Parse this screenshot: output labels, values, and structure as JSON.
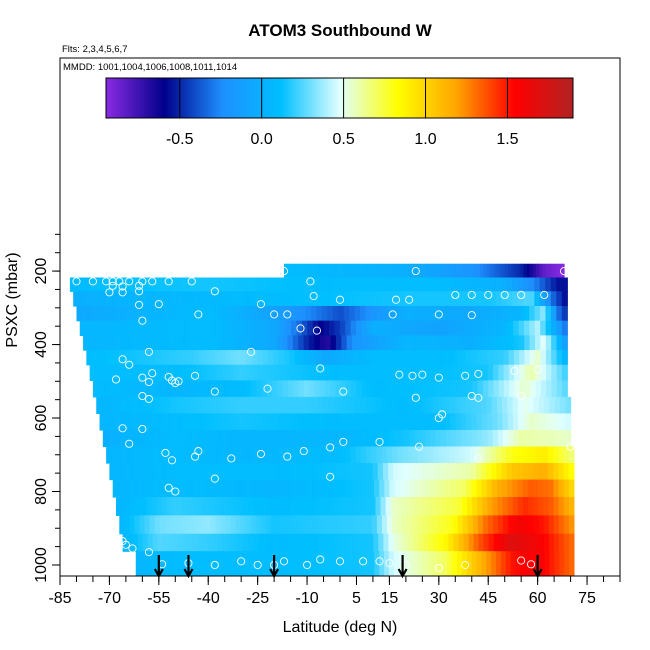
{
  "chart_data": {
    "type": "heatmap",
    "title": "ATOM3 Southbound W",
    "subtitle_flights": "Flts: 2,3,4,5,6,7",
    "subtitle_dates": "MMDD: 1001,1004,1006,1008,1011,1014",
    "xlabel": "Latitude (deg N)",
    "ylabel": "PSXC (mbar)",
    "xlim": [
      -85,
      85
    ],
    "ylim": [
      1030,
      -380
    ],
    "x_ticks": [
      -85,
      -70,
      -55,
      -40,
      -25,
      -10,
      5,
      15,
      30,
      45,
      60,
      75
    ],
    "y_ticks": [
      200,
      400,
      600,
      800,
      1000
    ],
    "colorbar": {
      "range": [
        -0.95,
        1.9
      ],
      "ticks": [
        -0.5,
        0.0,
        0.5,
        1.0,
        1.5
      ],
      "tick_labels": [
        "-0.5",
        "0.0",
        "0.5",
        "1.0",
        "1.5"
      ],
      "colors": [
        "#8a2be2",
        "#00008b",
        "#1e90ff",
        "#00bfff",
        "#e0ffff",
        "#ffff00",
        "#ffa500",
        "#ff0000",
        "#b22222"
      ]
    },
    "grid": false,
    "legend": "colorbar top",
    "flight_marker_latitudes": [
      -55,
      -46,
      -20,
      19,
      60
    ],
    "field_rows": [
      {
        "p": 200,
        "lat_min": -17,
        "lat_max": 68,
        "values": [
          [
            -17,
            0.1
          ],
          [
            0,
            0.05
          ],
          [
            20,
            0.0
          ],
          [
            40,
            -0.2
          ],
          [
            55,
            -0.5
          ],
          [
            62,
            -0.85
          ],
          [
            68,
            -0.95
          ]
        ]
      },
      {
        "p": 235,
        "lat_min": -82,
        "lat_max": 69,
        "values": [
          [
            -82,
            0.1
          ],
          [
            -40,
            0.15
          ],
          [
            0,
            0.1
          ],
          [
            30,
            0.1
          ],
          [
            50,
            0.0
          ],
          [
            60,
            -0.3
          ],
          [
            66,
            -0.55
          ],
          [
            69,
            -0.55
          ]
        ]
      },
      {
        "p": 275,
        "lat_min": -81,
        "lat_max": 69,
        "values": [
          [
            -81,
            0.0
          ],
          [
            -60,
            0.05
          ],
          [
            -20,
            0.1
          ],
          [
            20,
            0.15
          ],
          [
            45,
            0.15
          ],
          [
            58,
            0.25
          ],
          [
            64,
            -0.3
          ],
          [
            69,
            -0.6
          ]
        ]
      },
      {
        "p": 315,
        "lat_min": -80,
        "lat_max": 69,
        "values": [
          [
            -80,
            -0.05
          ],
          [
            -40,
            0.1
          ],
          [
            -20,
            -0.1
          ],
          [
            0,
            -0.4
          ],
          [
            20,
            0.0
          ],
          [
            40,
            -0.05
          ],
          [
            55,
            0.05
          ],
          [
            62,
            0.35
          ],
          [
            66,
            -0.3
          ],
          [
            69,
            -0.5
          ]
        ]
      },
      {
        "p": 355,
        "lat_min": -79,
        "lat_max": 69,
        "values": [
          [
            -79,
            0.05
          ],
          [
            -40,
            0.1
          ],
          [
            -20,
            -0.05
          ],
          [
            -12,
            -0.35
          ],
          [
            -6,
            -0.6
          ],
          [
            0,
            -0.45
          ],
          [
            10,
            0.0
          ],
          [
            30,
            -0.1
          ],
          [
            50,
            0.05
          ],
          [
            60,
            0.4
          ],
          [
            69,
            -0.35
          ]
        ]
      },
      {
        "p": 395,
        "lat_min": -78,
        "lat_max": 69,
        "values": [
          [
            -78,
            0.05
          ],
          [
            -40,
            0.1
          ],
          [
            -20,
            -0.05
          ],
          [
            -10,
            -0.5
          ],
          [
            -4,
            -0.7
          ],
          [
            4,
            -0.2
          ],
          [
            20,
            0.05
          ],
          [
            40,
            0.0
          ],
          [
            55,
            0.15
          ],
          [
            62,
            0.5
          ],
          [
            69,
            -0.2
          ]
        ]
      },
      {
        "p": 435,
        "lat_min": -77,
        "lat_max": 69,
        "values": [
          [
            -77,
            0.1
          ],
          [
            -45,
            0.2
          ],
          [
            -30,
            0.3
          ],
          [
            -15,
            0.15
          ],
          [
            -5,
            -0.05
          ],
          [
            10,
            0.1
          ],
          [
            30,
            0.1
          ],
          [
            50,
            0.2
          ],
          [
            60,
            0.55
          ],
          [
            69,
            0.0
          ]
        ]
      },
      {
        "p": 475,
        "lat_min": -76,
        "lat_max": 69,
        "values": [
          [
            -76,
            0.1
          ],
          [
            -50,
            0.1
          ],
          [
            -30,
            0.2
          ],
          [
            0,
            0.1
          ],
          [
            20,
            0.1
          ],
          [
            45,
            0.15
          ],
          [
            58,
            0.6
          ],
          [
            69,
            0.2
          ]
        ]
      },
      {
        "p": 520,
        "lat_min": -75,
        "lat_max": 69,
        "values": [
          [
            -75,
            0.1
          ],
          [
            -50,
            0.05
          ],
          [
            -30,
            0.1
          ],
          [
            -10,
            0.3
          ],
          [
            10,
            0.1
          ],
          [
            40,
            0.15
          ],
          [
            56,
            0.55
          ],
          [
            69,
            0.25
          ]
        ]
      },
      {
        "p": 565,
        "lat_min": -74,
        "lat_max": 70,
        "values": [
          [
            -74,
            0.05
          ],
          [
            -50,
            0.15
          ],
          [
            -30,
            0.2
          ],
          [
            -10,
            0.2
          ],
          [
            20,
            0.1
          ],
          [
            45,
            0.25
          ],
          [
            56,
            0.5
          ],
          [
            70,
            0.3
          ]
        ]
      },
      {
        "p": 610,
        "lat_min": -73,
        "lat_max": 70,
        "values": [
          [
            -73,
            0.05
          ],
          [
            -50,
            0.1
          ],
          [
            -30,
            0.15
          ],
          [
            0,
            0.1
          ],
          [
            30,
            0.1
          ],
          [
            48,
            0.3
          ],
          [
            58,
            0.55
          ],
          [
            70,
            0.45
          ]
        ]
      },
      {
        "p": 655,
        "lat_min": -72,
        "lat_max": 70,
        "values": [
          [
            -72,
            0.0
          ],
          [
            -50,
            0.1
          ],
          [
            -30,
            0.05
          ],
          [
            0,
            0.05
          ],
          [
            20,
            0.15
          ],
          [
            45,
            0.35
          ],
          [
            55,
            0.6
          ],
          [
            70,
            0.55
          ]
        ]
      },
      {
        "p": 700,
        "lat_min": -71,
        "lat_max": 71,
        "values": [
          [
            -71,
            0.05
          ],
          [
            -50,
            0.1
          ],
          [
            -30,
            0.05
          ],
          [
            0,
            0.1
          ],
          [
            18,
            0.3
          ],
          [
            40,
            0.45
          ],
          [
            52,
            0.8
          ],
          [
            62,
            0.9
          ],
          [
            71,
            0.65
          ]
        ]
      },
      {
        "p": 745,
        "lat_min": -70,
        "lat_max": 71,
        "values": [
          [
            -70,
            0.05
          ],
          [
            -50,
            0.1
          ],
          [
            -20,
            0.1
          ],
          [
            10,
            0.15
          ],
          [
            16,
            0.45
          ],
          [
            40,
            0.6
          ],
          [
            52,
            1.05
          ],
          [
            62,
            1.15
          ],
          [
            71,
            0.8
          ]
        ]
      },
      {
        "p": 790,
        "lat_min": -69,
        "lat_max": 71,
        "values": [
          [
            -69,
            0.05
          ],
          [
            -50,
            0.1
          ],
          [
            -20,
            0.05
          ],
          [
            10,
            0.15
          ],
          [
            16,
            0.45
          ],
          [
            38,
            0.7
          ],
          [
            48,
            1.15
          ],
          [
            58,
            1.35
          ],
          [
            64,
            1.3
          ],
          [
            71,
            0.95
          ]
        ]
      },
      {
        "p": 840,
        "lat_min": -68,
        "lat_max": 71,
        "values": [
          [
            -68,
            0.05
          ],
          [
            -50,
            0.2
          ],
          [
            -20,
            0.1
          ],
          [
            10,
            0.15
          ],
          [
            16,
            0.55
          ],
          [
            36,
            0.75
          ],
          [
            46,
            1.2
          ],
          [
            56,
            1.45
          ],
          [
            64,
            1.35
          ],
          [
            71,
            1.1
          ]
        ]
      },
      {
        "p": 890,
        "lat_min": -67,
        "lat_max": 71,
        "values": [
          [
            -67,
            0.05
          ],
          [
            -55,
            0.3
          ],
          [
            -40,
            0.35
          ],
          [
            -20,
            0.15
          ],
          [
            10,
            0.2
          ],
          [
            16,
            0.55
          ],
          [
            34,
            0.8
          ],
          [
            44,
            1.3
          ],
          [
            54,
            1.6
          ],
          [
            62,
            1.5
          ],
          [
            71,
            1.2
          ]
        ]
      },
      {
        "p": 940,
        "lat_min": -66,
        "lat_max": 71,
        "values": [
          [
            -66,
            0.05
          ],
          [
            -55,
            0.25
          ],
          [
            -40,
            0.2
          ],
          [
            -20,
            0.1
          ],
          [
            10,
            0.15
          ],
          [
            16,
            0.5
          ],
          [
            32,
            0.85
          ],
          [
            42,
            1.35
          ],
          [
            52,
            1.7
          ],
          [
            60,
            1.6
          ],
          [
            71,
            1.3
          ]
        ]
      },
      {
        "p": 985,
        "lat_min": -62,
        "lat_max": 71,
        "values": [
          [
            -62,
            0.05
          ],
          [
            -50,
            0.1
          ],
          [
            -20,
            0.1
          ],
          [
            10,
            0.15
          ],
          [
            16,
            0.45
          ],
          [
            32,
            0.7
          ],
          [
            42,
            1.1
          ],
          [
            52,
            1.5
          ],
          [
            60,
            1.6
          ],
          [
            71,
            1.3
          ]
        ]
      }
    ],
    "observations": [
      [
        -17,
        200
      ],
      [
        23,
        200
      ],
      [
        68,
        200
      ],
      [
        -80,
        228
      ],
      [
        -75,
        228
      ],
      [
        -71,
        228
      ],
      [
        -69,
        228
      ],
      [
        -67,
        228
      ],
      [
        -64,
        228
      ],
      [
        -60,
        228
      ],
      [
        -57,
        228
      ],
      [
        -52,
        228
      ],
      [
        -45,
        228
      ],
      [
        -9,
        228
      ],
      [
        -69,
        240
      ],
      [
        -66,
        242
      ],
      [
        -61,
        240
      ],
      [
        -70,
        258
      ],
      [
        -66,
        258
      ],
      [
        -61,
        255
      ],
      [
        -38,
        255
      ],
      [
        -24,
        290
      ],
      [
        -55,
        290
      ],
      [
        -8,
        268
      ],
      [
        0,
        278
      ],
      [
        17,
        278
      ],
      [
        21,
        278
      ],
      [
        35,
        265
      ],
      [
        40,
        265
      ],
      [
        45,
        265
      ],
      [
        50,
        265
      ],
      [
        55,
        265
      ],
      [
        62,
        265
      ],
      [
        -61,
        292
      ],
      [
        -43,
        318
      ],
      [
        -20,
        318
      ],
      [
        -16,
        318
      ],
      [
        16,
        318
      ],
      [
        30,
        318
      ],
      [
        40,
        320
      ],
      [
        -60,
        335
      ],
      [
        -12,
        356
      ],
      [
        -7,
        362
      ],
      [
        -58,
        420
      ],
      [
        -27,
        420
      ],
      [
        -66,
        440
      ],
      [
        -64,
        455
      ],
      [
        -57,
        478
      ],
      [
        -52,
        488
      ],
      [
        -44,
        485
      ],
      [
        -60,
        490
      ],
      [
        -79,
        495
      ],
      [
        -68,
        495
      ],
      [
        -58,
        502
      ],
      [
        -50,
        505
      ],
      [
        -51,
        498
      ],
      [
        -49,
        500
      ],
      [
        -6,
        465
      ],
      [
        18,
        482
      ],
      [
        22,
        485
      ],
      [
        25,
        482
      ],
      [
        30,
        490
      ],
      [
        38,
        485
      ],
      [
        42,
        480
      ],
      [
        53,
        472
      ],
      [
        60,
        468
      ],
      [
        -60,
        540
      ],
      [
        -58,
        548
      ],
      [
        -38,
        528
      ],
      [
        -22,
        520
      ],
      [
        1,
        528
      ],
      [
        23,
        545
      ],
      [
        40,
        540
      ],
      [
        42,
        545
      ],
      [
        -66,
        628
      ],
      [
        -60,
        630
      ],
      [
        30,
        600
      ],
      [
        31,
        590
      ],
      [
        55,
        540
      ],
      [
        -64,
        670
      ],
      [
        -53,
        695
      ],
      [
        -51,
        715
      ],
      [
        -44,
        705
      ],
      [
        -43,
        690
      ],
      [
        -33,
        710
      ],
      [
        -24,
        698
      ],
      [
        -16,
        705
      ],
      [
        -11,
        690
      ],
      [
        -3,
        680
      ],
      [
        1,
        665
      ],
      [
        12,
        665
      ],
      [
        24,
        678
      ],
      [
        42,
        710
      ],
      [
        70,
        678
      ],
      [
        -38,
        765
      ],
      [
        -52,
        790
      ],
      [
        -3,
        760
      ],
      [
        -50,
        800
      ],
      [
        -66,
        935
      ],
      [
        -65,
        945
      ],
      [
        -63,
        955
      ],
      [
        -58,
        965
      ],
      [
        -54,
        998
      ],
      [
        -46,
        995
      ],
      [
        -38,
        1000
      ],
      [
        -30,
        990
      ],
      [
        -25,
        1000
      ],
      [
        -20,
        1000
      ],
      [
        -17,
        990
      ],
      [
        -10,
        1000
      ],
      [
        -6,
        985
      ],
      [
        0,
        990
      ],
      [
        7,
        990
      ],
      [
        12,
        990
      ],
      [
        15,
        995
      ],
      [
        20,
        1000
      ],
      [
        30,
        1008
      ],
      [
        38,
        1000
      ],
      [
        55,
        988
      ],
      [
        58,
        998
      ]
    ]
  }
}
